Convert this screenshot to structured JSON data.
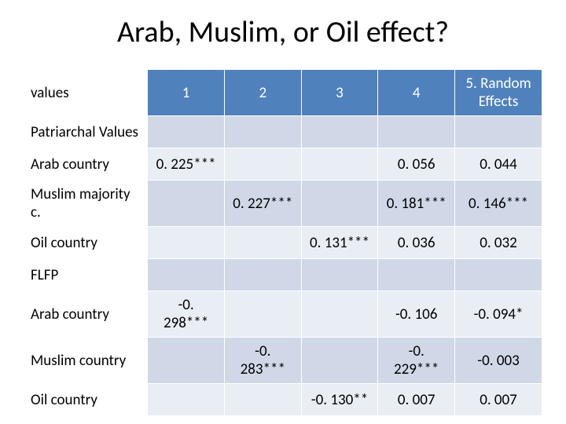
{
  "title": "Arab, Muslim, or Oil effect?",
  "header": {
    "label": "values",
    "cols": [
      "1",
      "2",
      "3",
      "4",
      "5. Random Effects"
    ]
  },
  "rows": [
    {
      "label": "Patriarchal Values",
      "cells": [
        "",
        "",
        "",
        "",
        ""
      ]
    },
    {
      "label": "Arab country",
      "cells": [
        "0. 225***",
        "",
        "",
        "0. 056",
        "0. 044"
      ]
    },
    {
      "label": "Muslim majority c.",
      "cells": [
        "",
        "0. 227***",
        "",
        "0. 181***",
        "0. 146***"
      ]
    },
    {
      "label": "Oil country",
      "cells": [
        "",
        "",
        "0. 131***",
        "0. 036",
        "0. 032"
      ]
    },
    {
      "label": "FLFP",
      "cells": [
        "",
        "",
        "",
        "",
        ""
      ]
    },
    {
      "label": "Arab country",
      "cells": [
        "-0. 298***",
        "",
        "",
        "-0. 106",
        "-0. 094*"
      ]
    },
    {
      "label": "Muslim country",
      "cells": [
        "",
        "-0. 283***",
        "",
        "-0. 229***",
        "-0. 003"
      ]
    },
    {
      "label": "Oil country",
      "cells": [
        "",
        "",
        "-0. 130**",
        "0. 007",
        "0. 007"
      ]
    }
  ],
  "colors": {
    "header_bg": "#4f81bd",
    "header_fg": "#ffffff",
    "row_odd_bg": "#d0d8e8",
    "row_even_bg": "#e9edf4",
    "rowhead_bg": "#ffffff",
    "text": "#000000"
  },
  "font": {
    "title_size_pt": 38,
    "body_size_pt": 19,
    "family": "Calibri"
  }
}
